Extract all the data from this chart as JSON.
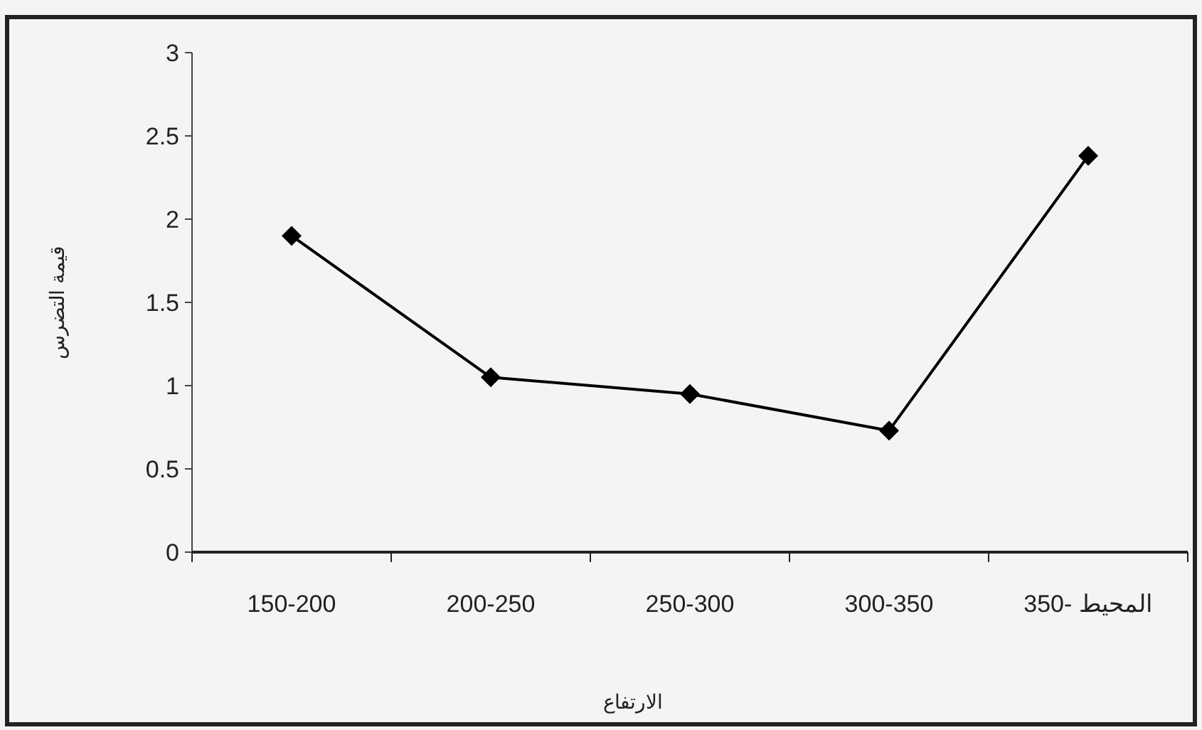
{
  "chart_data": {
    "type": "line",
    "xlabel": "الارتفاع",
    "ylabel": "قيمة التضرس",
    "categories": [
      "150-200",
      "200-250",
      "250-300",
      "300-350",
      "350- المحيط"
    ],
    "series": [
      {
        "color": "#000000",
        "values": [
          1.9,
          1.05,
          0.95,
          0.73,
          2.38
        ]
      }
    ],
    "ylim": [
      0,
      3
    ],
    "yticks": [
      0,
      0.5,
      1,
      1.5,
      2,
      2.5,
      3
    ],
    "marker": "diamond",
    "line_style": "solid"
  }
}
